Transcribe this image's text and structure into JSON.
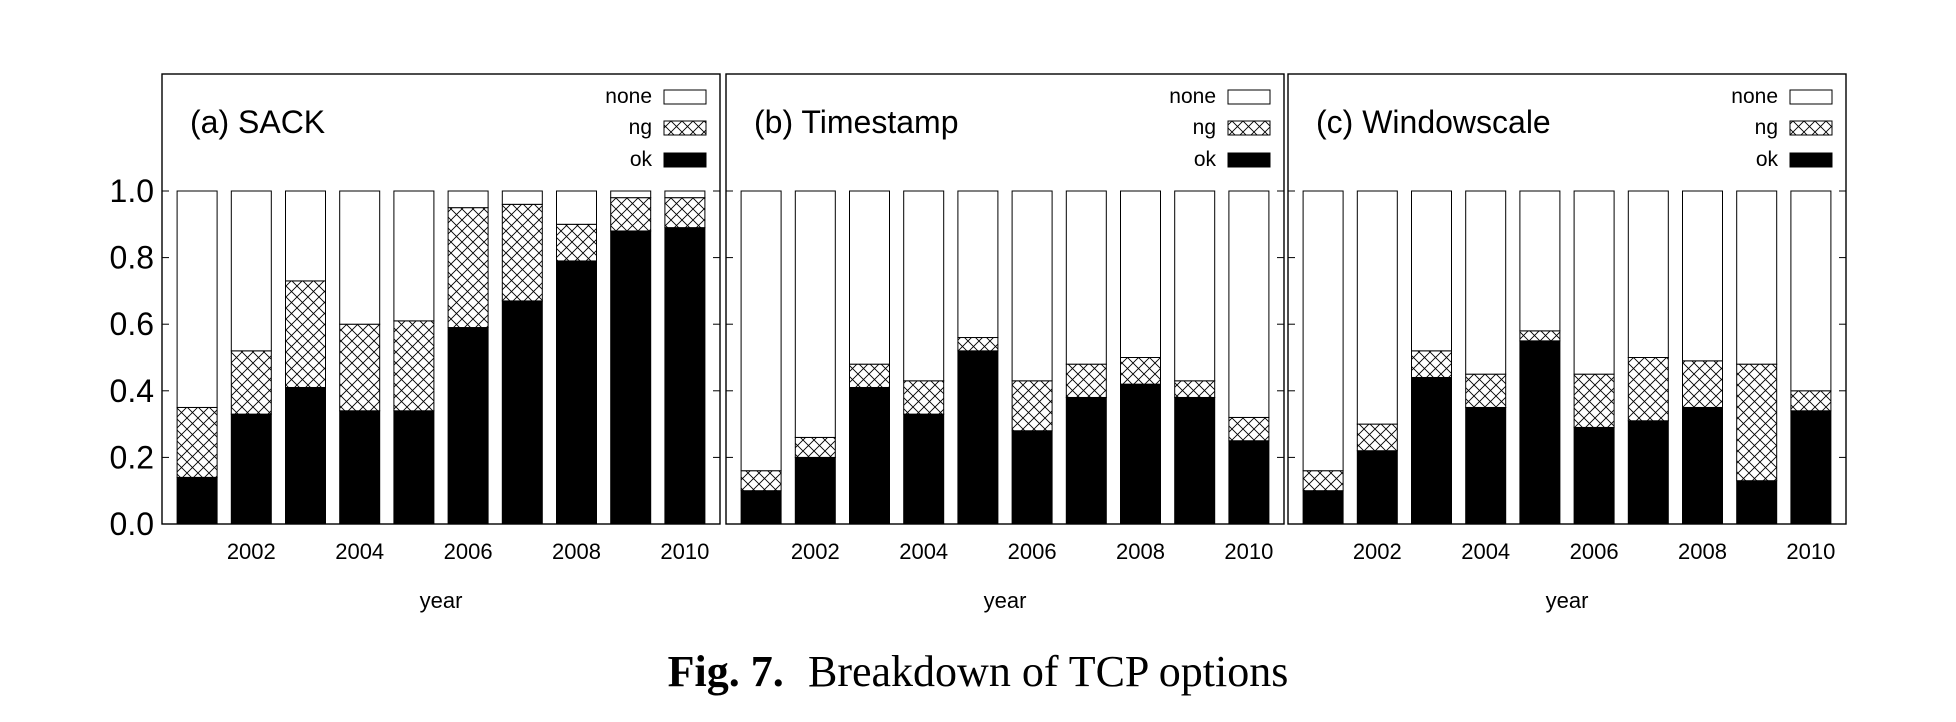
{
  "caption": {
    "label": "Fig. 7.",
    "text": "Breakdown of TCP options"
  },
  "colors": {
    "ok": "#000000",
    "ng": "#ffffff",
    "none": "#ffffff",
    "axis": "#000000"
  },
  "chart_data": [
    {
      "type": "bar",
      "stacked": true,
      "title": "(a) SACK",
      "xlabel": "year",
      "ylabel": "",
      "ylim": [
        0,
        1
      ],
      "y_ticks": [
        "0.0",
        "0.2",
        "0.4",
        "0.6",
        "0.8",
        "1.0"
      ],
      "x": [
        2001,
        2002,
        2003,
        2004,
        2005,
        2006,
        2007,
        2008,
        2009,
        2010
      ],
      "x_tick_labels": [
        "2002",
        "2004",
        "2006",
        "2008",
        "2010"
      ],
      "legend": [
        "none",
        "ng",
        "ok"
      ],
      "legend_position": "top-right",
      "series": [
        {
          "name": "ok",
          "pattern": "solid",
          "values": [
            0.14,
            0.33,
            0.41,
            0.34,
            0.34,
            0.59,
            0.67,
            0.79,
            0.88,
            0.89
          ]
        },
        {
          "name": "ng",
          "pattern": "crosshatch",
          "values": [
            0.21,
            0.19,
            0.32,
            0.26,
            0.27,
            0.36,
            0.29,
            0.11,
            0.1,
            0.09
          ]
        },
        {
          "name": "none",
          "pattern": "empty",
          "values": [
            0.65,
            0.48,
            0.27,
            0.4,
            0.39,
            0.05,
            0.04,
            0.1,
            0.02,
            0.02
          ]
        }
      ]
    },
    {
      "type": "bar",
      "stacked": true,
      "title": "(b) Timestamp",
      "xlabel": "year",
      "ylabel": "",
      "ylim": [
        0,
        1
      ],
      "y_ticks": [],
      "x": [
        2001,
        2002,
        2003,
        2004,
        2005,
        2006,
        2007,
        2008,
        2009,
        2010
      ],
      "x_tick_labels": [
        "2002",
        "2004",
        "2006",
        "2008",
        "2010"
      ],
      "legend": [
        "none",
        "ng",
        "ok"
      ],
      "legend_position": "top-right",
      "series": [
        {
          "name": "ok",
          "pattern": "solid",
          "values": [
            0.1,
            0.2,
            0.41,
            0.33,
            0.52,
            0.28,
            0.38,
            0.42,
            0.38,
            0.25
          ]
        },
        {
          "name": "ng",
          "pattern": "crosshatch",
          "values": [
            0.06,
            0.06,
            0.07,
            0.1,
            0.04,
            0.15,
            0.1,
            0.08,
            0.05,
            0.07
          ]
        },
        {
          "name": "none",
          "pattern": "empty",
          "values": [
            0.84,
            0.74,
            0.52,
            0.57,
            0.44,
            0.57,
            0.52,
            0.5,
            0.57,
            0.68
          ]
        }
      ]
    },
    {
      "type": "bar",
      "stacked": true,
      "title": "(c) Windowscale",
      "xlabel": "year",
      "ylabel": "",
      "ylim": [
        0,
        1
      ],
      "y_ticks": [],
      "x": [
        2001,
        2002,
        2003,
        2004,
        2005,
        2006,
        2007,
        2008,
        2009,
        2010
      ],
      "x_tick_labels": [
        "2002",
        "2004",
        "2006",
        "2008",
        "2010"
      ],
      "legend": [
        "none",
        "ng",
        "ok"
      ],
      "legend_position": "top-right",
      "series": [
        {
          "name": "ok",
          "pattern": "solid",
          "values": [
            0.1,
            0.22,
            0.44,
            0.35,
            0.55,
            0.29,
            0.31,
            0.35,
            0.13,
            0.34
          ]
        },
        {
          "name": "ng",
          "pattern": "crosshatch",
          "values": [
            0.06,
            0.08,
            0.08,
            0.1,
            0.03,
            0.16,
            0.19,
            0.14,
            0.35,
            0.06
          ]
        },
        {
          "name": "none",
          "pattern": "empty",
          "values": [
            0.84,
            0.7,
            0.48,
            0.55,
            0.42,
            0.55,
            0.5,
            0.51,
            0.52,
            0.6
          ]
        }
      ]
    }
  ]
}
